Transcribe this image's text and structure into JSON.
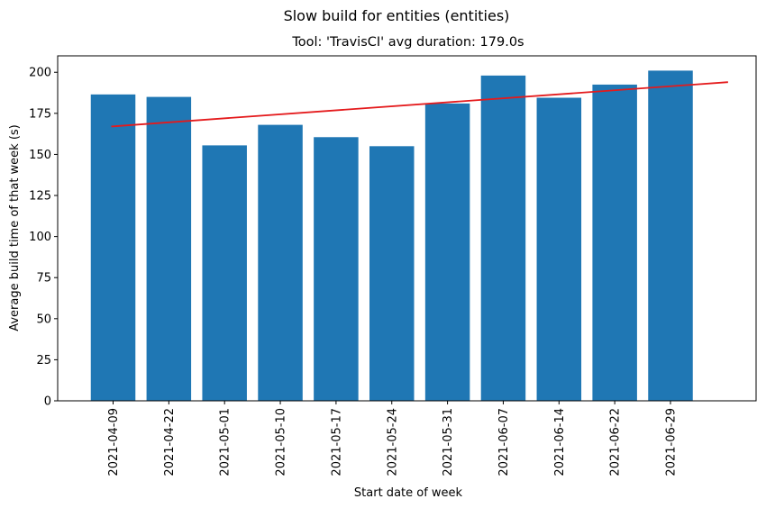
{
  "chart_data": {
    "type": "bar",
    "suptitle": "Slow build for entities (entities)",
    "title": "Tool: 'TravisCI' avg duration: 179.0s",
    "xlabel": "Start date of week",
    "ylabel": "Average build time of that week (s)",
    "categories": [
      "2021-04-09",
      "2021-04-22",
      "2021-05-01",
      "2021-05-10",
      "2021-05-17",
      "2021-05-24",
      "2021-05-31",
      "2021-06-07",
      "2021-06-14",
      "2021-06-22",
      "2021-06-29"
    ],
    "values": [
      186.5,
      185.0,
      155.5,
      168.0,
      160.5,
      155.0,
      181.0,
      198.0,
      184.5,
      192.5,
      201.0
    ],
    "ylim": [
      0,
      210
    ],
    "yticks": [
      0,
      25,
      50,
      75,
      100,
      125,
      150,
      175,
      200
    ],
    "trend": {
      "start_index": 0,
      "end_index": 11,
      "start_value": 167.0,
      "end_value": 194.0,
      "color": "#e41a1c"
    },
    "bar_color": "#1f77b4",
    "grid": false,
    "legend": "none"
  }
}
